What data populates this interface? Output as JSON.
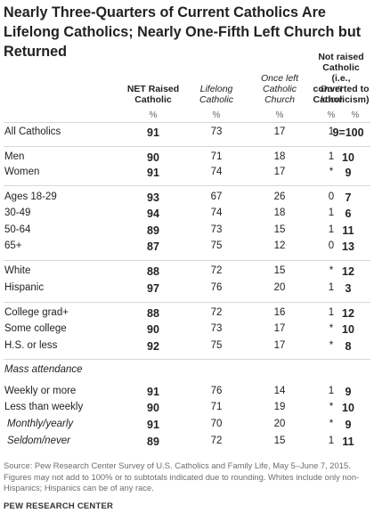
{
  "title": "Nearly Three-Quarters of Current Catholics Are Lifelong Catholics; Nearly One-Fifth Left Church but Returned",
  "columns": [
    {
      "lines": [
        "NET Raised",
        "Catholic"
      ],
      "style": "bold"
    },
    {
      "lines": [
        "Lifelong",
        "Catholic"
      ],
      "style": "ital"
    },
    {
      "lines": [
        "Once left",
        "Catholic",
        "Church"
      ],
      "style": "ital"
    },
    {
      "lines": [
        "Don't",
        "know"
      ],
      "style": "ital"
    },
    {
      "lines": [
        "Not raised",
        "Catholic",
        "(i.e.,",
        "converted to",
        "Catholicism)"
      ],
      "style": "bold"
    }
  ],
  "percent_label": "%",
  "chart_data": {
    "type": "table",
    "title": "Nearly Three-Quarters of Current Catholics Are Lifelong Catholics; Nearly One-Fifth Left Church but Returned",
    "headers": [
      "NET Raised Catholic",
      "Lifelong Catholic",
      "Once left Catholic Church",
      "Don't know",
      "Not raised Catholic (i.e., converted to Catholicism)"
    ],
    "rows": [
      {
        "label": "All Catholics",
        "values": [
          "91",
          "73",
          "17",
          "1",
          "9=100"
        ]
      },
      {
        "label": "Men",
        "values": [
          "90",
          "71",
          "18",
          "1",
          "10"
        ]
      },
      {
        "label": "Women",
        "values": [
          "91",
          "74",
          "17",
          "*",
          "9"
        ]
      },
      {
        "label": "Ages 18-29",
        "values": [
          "93",
          "67",
          "26",
          "0",
          "7"
        ]
      },
      {
        "label": "30-49",
        "values": [
          "94",
          "74",
          "18",
          "1",
          "6"
        ]
      },
      {
        "label": "50-64",
        "values": [
          "89",
          "73",
          "15",
          "1",
          "11"
        ]
      },
      {
        "label": "65+",
        "values": [
          "87",
          "75",
          "12",
          "0",
          "13"
        ]
      },
      {
        "label": "White",
        "values": [
          "88",
          "72",
          "15",
          "*",
          "12"
        ]
      },
      {
        "label": "Hispanic",
        "values": [
          "97",
          "76",
          "20",
          "1",
          "3"
        ]
      },
      {
        "label": "College grad+",
        "values": [
          "88",
          "72",
          "16",
          "1",
          "12"
        ]
      },
      {
        "label": "Some college",
        "values": [
          "90",
          "73",
          "17",
          "*",
          "10"
        ]
      },
      {
        "label": "H.S. or less",
        "values": [
          "92",
          "75",
          "17",
          "*",
          "8"
        ]
      },
      {
        "label": "Mass attendance",
        "values": []
      },
      {
        "label": "Weekly or more",
        "values": [
          "91",
          "76",
          "14",
          "1",
          "9"
        ]
      },
      {
        "label": "Less than weekly",
        "values": [
          "90",
          "71",
          "19",
          "*",
          "10"
        ]
      },
      {
        "label": "Monthly/yearly",
        "values": [
          "91",
          "70",
          "20",
          "*",
          "9"
        ]
      },
      {
        "label": "Seldom/never",
        "values": [
          "89",
          "72",
          "15",
          "1",
          "11"
        ]
      }
    ]
  },
  "note": "Source: Pew Research Center Survey of U.S. Catholics and Family Life, May 5–June 7, 2015. Figures may not add to 100% or to subtotals indicated due to rounding. Whites include only non-Hispanics; Hispanics can be of any race.",
  "source": "PEW RESEARCH CENTER"
}
